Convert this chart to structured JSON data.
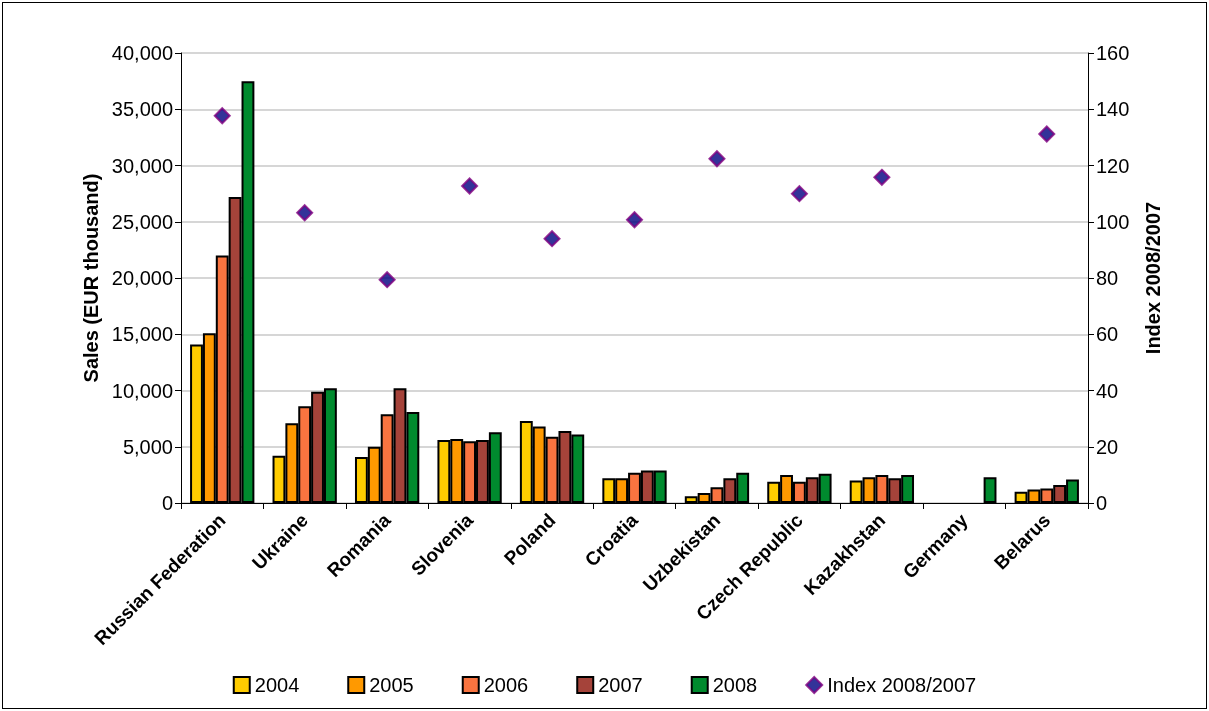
{
  "chart_data": {
    "type": "bar",
    "ylabel": "Sales (EUR thousand)",
    "y2label": "Index 2008/2007",
    "categories": [
      "Russian Federation",
      "Ukraine",
      "Romania",
      "Slovenia",
      "Poland",
      "Croatia",
      "Uzbekistan",
      "Czech Republic",
      "Kazakhstan",
      "Germany",
      "Belarus"
    ],
    "series": [
      {
        "name": "2004",
        "color": "#ffcc00",
        "values": [
          14100,
          4200,
          4100,
          5600,
          7300,
          2200,
          600,
          1900,
          2000,
          null,
          1000
        ]
      },
      {
        "name": "2005",
        "color": "#ff9900",
        "values": [
          15100,
          7100,
          5000,
          5700,
          6800,
          2200,
          900,
          2500,
          2300,
          null,
          1200
        ]
      },
      {
        "name": "2006",
        "color": "#f97440",
        "values": [
          22000,
          8600,
          7900,
          5500,
          5900,
          2700,
          1400,
          1900,
          2500,
          null,
          1300
        ]
      },
      {
        "name": "2007",
        "color": "#a5433a",
        "values": [
          27200,
          9900,
          10200,
          5600,
          6400,
          2900,
          2200,
          2300,
          2200,
          null,
          1600
        ]
      },
      {
        "name": "2008",
        "color": "#008a2e",
        "values": [
          37500,
          10200,
          8100,
          6300,
          6100,
          2900,
          2700,
          2600,
          2500,
          2300,
          2100
        ]
      },
      {
        "name": "Index 2008/2007",
        "type": "scatter",
        "axis": "y2",
        "color": "#000080",
        "marker": "diamond",
        "values": [
          137.7,
          103.2,
          79.4,
          112.7,
          94.0,
          100.7,
          122.4,
          110.0,
          115.8,
          null,
          131.2
        ]
      }
    ],
    "ylim": [
      0,
      40000
    ],
    "yticks": [
      {
        "value": 0,
        "label": "0"
      },
      {
        "value": 5000,
        "label": "5,000"
      },
      {
        "value": 10000,
        "label": "10,000"
      },
      {
        "value": 15000,
        "label": "15,000"
      },
      {
        "value": 20000,
        "label": "20,000"
      },
      {
        "value": 25000,
        "label": "25,000"
      },
      {
        "value": 30000,
        "label": "30,000"
      },
      {
        "value": 35000,
        "label": "35,000"
      },
      {
        "value": 40000,
        "label": "40,000"
      }
    ],
    "y2lim": [
      0,
      160
    ],
    "y2ticks": [
      0,
      20,
      40,
      60,
      80,
      100,
      120,
      140,
      160
    ],
    "grid": "y",
    "legend": "bottom"
  }
}
